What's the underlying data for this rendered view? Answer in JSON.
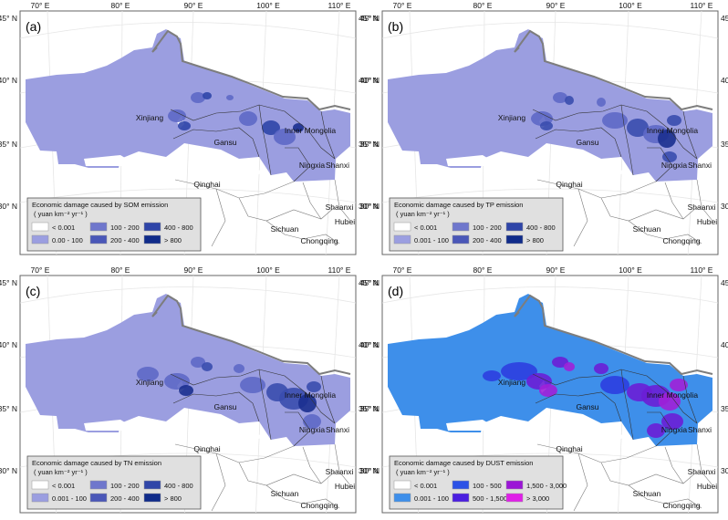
{
  "meta": {
    "lon_ticks": [
      "70° E",
      "80° E",
      "90° E",
      "100° E",
      "110° E"
    ],
    "lat_ticks": [
      "45° N",
      "40° N",
      "35° N",
      "30° N"
    ]
  },
  "place_labels": [
    "Xinjiang",
    "Gansu",
    "Inner Mongolia",
    "Qinghai",
    "Ningxia",
    "Shanxi",
    "Shaanxi",
    "Sichuan",
    "Chongqing",
    "Hubei"
  ],
  "panels": [
    {
      "label": "(a)",
      "legend_title": "Economic damage caused by SOM emission",
      "unit": "( yuan  km⁻² yr⁻¹ )",
      "base_color": "#9b9ee0",
      "spot_colors": [
        "#5e68c6",
        "#2f45a8",
        "#1b2f8f"
      ],
      "classes": [
        {
          "label": "< 0.001",
          "color": "#ffffff"
        },
        {
          "label": "0.00 - 100",
          "color": "#9b9ee0"
        },
        {
          "label": "100 - 200",
          "color": "#6f77cc"
        },
        {
          "label": "200 - 400",
          "color": "#4a57b8"
        },
        {
          "label": "400 - 800",
          "color": "#2f45a8"
        },
        {
          "label": "> 800",
          "color": "#0f2b8a"
        }
      ]
    },
    {
      "label": "(b)",
      "legend_title": "Economic damage caused by TP emission",
      "unit": "( yuan  km⁻² yr⁻¹ )",
      "base_color": "#9b9ee0",
      "spot_colors": [
        "#5e68c6",
        "#3a4cae",
        "#1b2f8f"
      ],
      "classes": [
        {
          "label": "< 0.001",
          "color": "#ffffff"
        },
        {
          "label": "0.001 - 100",
          "color": "#9b9ee0"
        },
        {
          "label": "100 - 200",
          "color": "#6f77cc"
        },
        {
          "label": "200 - 400",
          "color": "#4a57b8"
        },
        {
          "label": "400 - 800",
          "color": "#2f45a8"
        },
        {
          "label": "> 800",
          "color": "#0f2b8a"
        }
      ]
    },
    {
      "label": "(c)",
      "legend_title": "Economic damage caused by TN emission",
      "unit": "( yuan  km⁻² yr⁻¹ )",
      "base_color": "#9b9ee0",
      "spot_colors": [
        "#5e68c6",
        "#3a4cae",
        "#1b2f8f"
      ],
      "classes": [
        {
          "label": "< 0.001",
          "color": "#ffffff"
        },
        {
          "label": "0.001 - 100",
          "color": "#9b9ee0"
        },
        {
          "label": "100 - 200",
          "color": "#6f77cc"
        },
        {
          "label": "200 - 400",
          "color": "#4a57b8"
        },
        {
          "label": "400 - 800",
          "color": "#2f45a8"
        },
        {
          "label": "> 800",
          "color": "#0f2b8a"
        }
      ]
    },
    {
      "label": "(d)",
      "legend_title": "Economic damage caused by DUST emission",
      "unit": "( yuan  km⁻² yr⁻¹ )",
      "base_color": "#3e8fea",
      "spot_colors": [
        "#2c3ee0",
        "#6a1ed6",
        "#a020d8"
      ],
      "classes": [
        {
          "label": "< 0.001",
          "color": "#ffffff"
        },
        {
          "label": "0.001 - 100",
          "color": "#3e8fea"
        },
        {
          "label": "100 - 500",
          "color": "#2c52e6"
        },
        {
          "label": "500 - 1,500",
          "color": "#4a1ee0"
        },
        {
          "label": "1,500 - 3,000",
          "color": "#9b16d6"
        },
        {
          "label": "> 3,000",
          "color": "#e020e8"
        }
      ]
    }
  ]
}
